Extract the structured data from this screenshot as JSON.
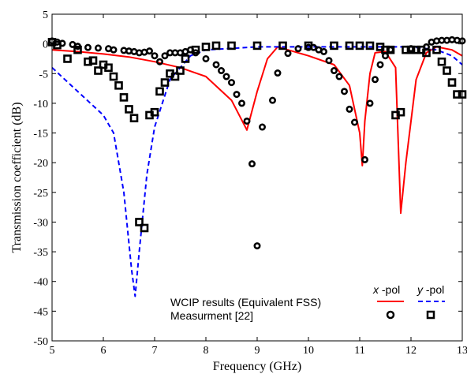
{
  "chart_data": {
    "type": "line",
    "xlabel": "Frequency (GHz)",
    "ylabel": "Transmission coefficient (dB)",
    "xlim": [
      5,
      13
    ],
    "ylim": [
      -50,
      5
    ],
    "xticks": [
      "5",
      "6",
      "7",
      "8",
      "9",
      "10",
      "11",
      "12",
      "13"
    ],
    "yticks": [
      "5",
      "0",
      "-5",
      "-10",
      "-15",
      "-20",
      "-25",
      "-30",
      "-35",
      "-40",
      "-45",
      "-50"
    ],
    "legend": {
      "rows": [
        "WCIP results (Equivalent FSS)",
        "Measurment [22]"
      ],
      "columns": [
        {
          "italic": "x",
          "rest": " -pol"
        },
        {
          "italic": "y",
          "rest": " -pol"
        }
      ]
    },
    "series": [
      {
        "key": "wcip_x",
        "style": "solid",
        "color": "#ff0000",
        "x": [
          5,
          5.5,
          6,
          6.5,
          7,
          7.5,
          8,
          8.5,
          8.8,
          9,
          9.2,
          9.4,
          9.6,
          10,
          10.5,
          10.8,
          11,
          11.05,
          11.1,
          11.2,
          11.3,
          11.5,
          11.7,
          11.8,
          11.9,
          12.1,
          12.3,
          12.5,
          12.8,
          13
        ],
        "y": [
          -1,
          -1.3,
          -1.7,
          -2.2,
          -3,
          -4,
          -5.5,
          -9.5,
          -14.5,
          -8,
          -2.5,
          -0.5,
          -1,
          -2,
          -3.5,
          -7,
          -15,
          -20.5,
          -13,
          -5,
          -1.5,
          -1.3,
          -4,
          -28.5,
          -20,
          -6,
          -1.5,
          -0.5,
          -1,
          -2
        ]
      },
      {
        "key": "wcip_y",
        "style": "dashed",
        "color": "#0000ff",
        "x": [
          5,
          5.5,
          6,
          6.2,
          6.4,
          6.55,
          6.62,
          6.7,
          6.85,
          7,
          7.3,
          7.7,
          8,
          9,
          10,
          11,
          12,
          12.5,
          12.8,
          13
        ],
        "y": [
          -4,
          -8,
          -12,
          -15,
          -25,
          -38,
          -42.5,
          -35,
          -22,
          -14,
          -6,
          -2,
          -1,
          -0.5,
          -0.5,
          -0.5,
          -0.5,
          -1,
          -2,
          -3.5
        ]
      },
      {
        "key": "meas_x",
        "marker": "circle",
        "x": [
          5,
          5.1,
          5.2,
          5.4,
          5.5,
          5.7,
          5.9,
          6.1,
          6.2,
          6.4,
          6.5,
          6.6,
          6.7,
          6.8,
          6.9,
          7.0,
          7.1,
          7.2,
          7.3,
          7.4,
          7.5,
          7.6,
          7.7,
          7.8,
          8,
          8.2,
          8.3,
          8.4,
          8.5,
          8.6,
          8.7,
          8.8,
          8.9,
          9,
          9.1,
          9.3,
          9.4,
          9.6,
          9.8,
          10.0,
          10.1,
          10.2,
          10.3,
          10.4,
          10.5,
          10.6,
          10.7,
          10.8,
          10.9,
          11.1,
          11.2,
          11.3,
          11.4,
          11.5,
          11.6,
          12.0,
          12.3,
          12.4,
          12.5,
          12.6,
          12.7,
          12.8,
          12.9,
          13
        ],
        "y": [
          0.5,
          0.3,
          0.1,
          -0.1,
          -0.4,
          -0.6,
          -0.7,
          -0.8,
          -1,
          -1.1,
          -1.2,
          -1.3,
          -1.5,
          -1.4,
          -1.2,
          -2,
          -3,
          -2,
          -1.5,
          -1.5,
          -1.5,
          -1.3,
          -1,
          -1.5,
          -2.5,
          -3.5,
          -4.5,
          -5.5,
          -6.5,
          -8.5,
          -10,
          -13,
          -20.2,
          -34,
          -14,
          -9.5,
          -4.9,
          -1.6,
          -0.8,
          -0.6,
          -0.6,
          -1,
          -1.3,
          -2.8,
          -4.5,
          -5.5,
          -8,
          -11,
          -13.2,
          -19.5,
          -10,
          -6,
          -3.5,
          -2,
          -1,
          -0.8,
          -0.5,
          0.3,
          0.5,
          0.6,
          0.6,
          0.7,
          0.6,
          0.5
        ]
      },
      {
        "key": "meas_y",
        "marker": "square",
        "x": [
          5,
          5.1,
          5.3,
          5.5,
          5.7,
          5.8,
          5.9,
          6.0,
          6.1,
          6.2,
          6.3,
          6.4,
          6.5,
          6.6,
          6.7,
          6.8,
          6.9,
          7.0,
          7.1,
          7.2,
          7.3,
          7.4,
          7.5,
          7.6,
          7.8,
          8.0,
          8.2,
          8.5,
          9,
          9.5,
          10,
          10.5,
          10.8,
          11,
          11.2,
          11.4,
          11.5,
          11.6,
          11.7,
          11.8,
          11.9,
          12.0,
          12.1,
          12.2,
          12.3,
          12.5,
          12.6,
          12.7,
          12.8,
          12.9,
          13
        ],
        "y": [
          0.3,
          -0.2,
          -2.5,
          -1,
          -3,
          -2.8,
          -4.5,
          -3.5,
          -4,
          -5.5,
          -7,
          -9,
          -11,
          -12.5,
          -30,
          -31,
          -12,
          -11.5,
          -8,
          -6.5,
          -5,
          -5.5,
          -4.5,
          -2.5,
          -1,
          -0.5,
          -0.3,
          -0.3,
          -0.3,
          -0.3,
          -0.3,
          -0.3,
          -0.3,
          -0.3,
          -0.3,
          -0.5,
          -1,
          -1,
          -12,
          -11.5,
          -1,
          -1,
          -1,
          -1,
          -1.5,
          -1,
          -3,
          -4.5,
          -6.5,
          -8.5,
          -8.5
        ]
      }
    ]
  }
}
